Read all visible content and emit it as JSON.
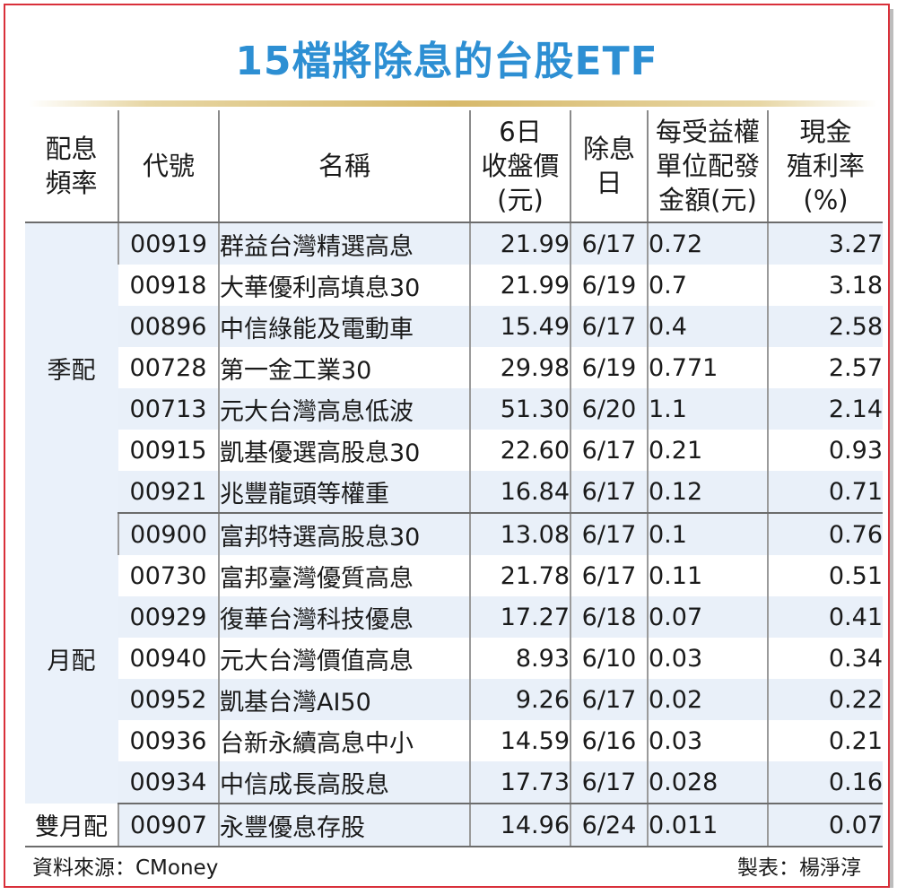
{
  "title": "15檔將除息的台股ETF",
  "columns": {
    "freq": [
      "配息",
      "頻率"
    ],
    "code": [
      "代號"
    ],
    "name": [
      "名稱"
    ],
    "price": [
      "6日",
      "收盤價",
      "(元)"
    ],
    "date": [
      "除息",
      "日"
    ],
    "amount": [
      "每受益權",
      "單位配發",
      "金額(元)"
    ],
    "yield": [
      "現金",
      "殖利率",
      "(%)"
    ]
  },
  "groups": [
    {
      "freq": "季配",
      "rows": [
        {
          "code": "00919",
          "name": "群益台灣精選高息",
          "price": "21.99",
          "date": "6/17",
          "amount": "0.72",
          "yield": "3.27"
        },
        {
          "code": "00918",
          "name": "大華優利高填息30",
          "price": "21.99",
          "date": "6/19",
          "amount": "0.7",
          "yield": "3.18"
        },
        {
          "code": "00896",
          "name": "中信綠能及電動車",
          "price": "15.49",
          "date": "6/17",
          "amount": "0.4",
          "yield": "2.58"
        },
        {
          "code": "00728",
          "name": "第一金工業30",
          "price": "29.98",
          "date": "6/19",
          "amount": "0.771",
          "yield": "2.57"
        },
        {
          "code": "00713",
          "name": "元大台灣高息低波",
          "price": "51.30",
          "date": "6/20",
          "amount": "1.1",
          "yield": "2.14"
        },
        {
          "code": "00915",
          "name": "凱基優選高股息30",
          "price": "22.60",
          "date": "6/17",
          "amount": "0.21",
          "yield": "0.93"
        },
        {
          "code": "00921",
          "name": "兆豐龍頭等權重",
          "price": "16.84",
          "date": "6/17",
          "amount": "0.12",
          "yield": "0.71"
        }
      ]
    },
    {
      "freq": "月配",
      "rows": [
        {
          "code": "00900",
          "name": "富邦特選高股息30",
          "price": "13.08",
          "date": "6/17",
          "amount": "0.1",
          "yield": "0.76"
        },
        {
          "code": "00730",
          "name": "富邦臺灣優質高息",
          "price": "21.78",
          "date": "6/17",
          "amount": "0.11",
          "yield": "0.51"
        },
        {
          "code": "00929",
          "name": "復華台灣科技優息",
          "price": "17.27",
          "date": "6/18",
          "amount": "0.07",
          "yield": "0.41"
        },
        {
          "code": "00940",
          "name": "元大台灣價值高息",
          "price": "8.93",
          "date": "6/10",
          "amount": "0.03",
          "yield": "0.34"
        },
        {
          "code": "00952",
          "name": "凱基台灣AI50",
          "price": "9.26",
          "date": "6/17",
          "amount": "0.02",
          "yield": "0.22"
        },
        {
          "code": "00936",
          "name": "台新永續高息中小",
          "price": "14.59",
          "date": "6/16",
          "amount": "0.03",
          "yield": "0.21"
        },
        {
          "code": "00934",
          "name": "中信成長高股息",
          "price": "17.73",
          "date": "6/17",
          "amount": "0.028",
          "yield": "0.16"
        }
      ]
    },
    {
      "freq": "雙月配",
      "rows": [
        {
          "code": "00907",
          "name": "永豐優息存股",
          "price": "14.96",
          "date": "6/24",
          "amount": "0.011",
          "yield": "0.07"
        }
      ]
    }
  ],
  "footer": {
    "source": "資料來源：CMoney",
    "credit": "製表：楊淨淳"
  },
  "colors": {
    "title": "#2d8fd3",
    "frame": "#d9303a",
    "row_shade": "#e9f0f9",
    "rule": "#d7b96a"
  }
}
